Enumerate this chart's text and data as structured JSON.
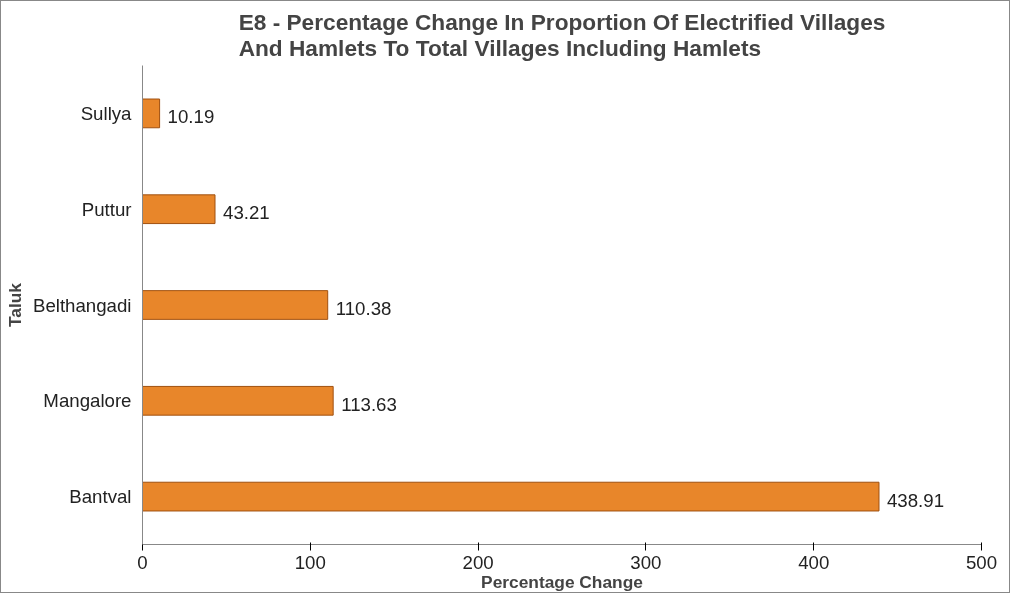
{
  "chart_data": {
    "type": "bar",
    "orientation": "horizontal",
    "title": "E8 - Percentage Change In Proportion Of Electrified Villages\nAnd Hamlets To Total Villages Including Hamlets",
    "xlabel": "Percentage Change",
    "ylabel": "Taluk",
    "categories": [
      "Sullya",
      "Puttur",
      "Belthangadi",
      "Mangalore",
      "Bantval"
    ],
    "values": [
      10.19,
      43.21,
      110.38,
      113.63,
      438.91
    ],
    "color": "#e8862a",
    "xlim": [
      0,
      500
    ],
    "xticks": [
      0,
      100,
      200,
      300,
      400,
      500
    ],
    "grid": false,
    "data_labels": true
  }
}
